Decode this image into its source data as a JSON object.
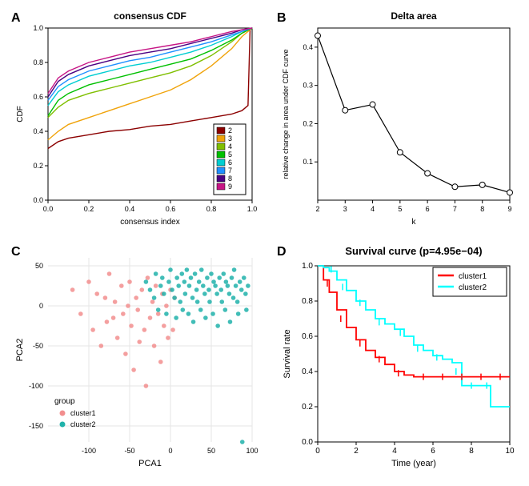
{
  "panelA": {
    "label": "A",
    "title": "consensus CDF",
    "xlabel": "consensus index",
    "ylabel": "CDF",
    "xlim": [
      0,
      1
    ],
    "ylim": [
      0,
      1
    ],
    "xticks": [
      0.0,
      0.2,
      0.4,
      0.6,
      0.8,
      1.0
    ],
    "yticks": [
      0.0,
      0.2,
      0.4,
      0.6,
      0.8,
      1.0
    ],
    "legend_items": [
      "2",
      "3",
      "4",
      "5",
      "6",
      "7",
      "8",
      "9"
    ],
    "legend_colors": [
      "#8B0000",
      "#F0A30A",
      "#7FBF00",
      "#00C000",
      "#00CED1",
      "#1E90FF",
      "#4B0082",
      "#C71585"
    ],
    "series": [
      {
        "color": "#8B0000",
        "pts": [
          [
            0,
            0.3
          ],
          [
            0.05,
            0.34
          ],
          [
            0.1,
            0.36
          ],
          [
            0.2,
            0.38
          ],
          [
            0.3,
            0.4
          ],
          [
            0.4,
            0.41
          ],
          [
            0.5,
            0.43
          ],
          [
            0.6,
            0.44
          ],
          [
            0.7,
            0.46
          ],
          [
            0.8,
            0.48
          ],
          [
            0.9,
            0.5
          ],
          [
            0.95,
            0.52
          ],
          [
            0.98,
            0.55
          ],
          [
            0.99,
            0.99
          ],
          [
            1,
            1
          ]
        ]
      },
      {
        "color": "#F0A30A",
        "pts": [
          [
            0,
            0.35
          ],
          [
            0.05,
            0.4
          ],
          [
            0.1,
            0.44
          ],
          [
            0.2,
            0.48
          ],
          [
            0.3,
            0.52
          ],
          [
            0.4,
            0.56
          ],
          [
            0.5,
            0.6
          ],
          [
            0.6,
            0.64
          ],
          [
            0.7,
            0.7
          ],
          [
            0.8,
            0.78
          ],
          [
            0.9,
            0.88
          ],
          [
            0.95,
            0.95
          ],
          [
            1,
            1
          ]
        ]
      },
      {
        "color": "#7FBF00",
        "pts": [
          [
            0,
            0.48
          ],
          [
            0.05,
            0.54
          ],
          [
            0.1,
            0.58
          ],
          [
            0.2,
            0.62
          ],
          [
            0.3,
            0.65
          ],
          [
            0.4,
            0.68
          ],
          [
            0.5,
            0.71
          ],
          [
            0.6,
            0.74
          ],
          [
            0.7,
            0.78
          ],
          [
            0.8,
            0.84
          ],
          [
            0.9,
            0.92
          ],
          [
            0.95,
            0.97
          ],
          [
            1,
            1
          ]
        ]
      },
      {
        "color": "#00C000",
        "pts": [
          [
            0,
            0.49
          ],
          [
            0.05,
            0.58
          ],
          [
            0.1,
            0.62
          ],
          [
            0.2,
            0.67
          ],
          [
            0.3,
            0.7
          ],
          [
            0.4,
            0.73
          ],
          [
            0.5,
            0.76
          ],
          [
            0.6,
            0.79
          ],
          [
            0.7,
            0.82
          ],
          [
            0.8,
            0.87
          ],
          [
            0.9,
            0.93
          ],
          [
            0.95,
            0.97
          ],
          [
            1,
            1
          ]
        ]
      },
      {
        "color": "#00CED1",
        "pts": [
          [
            0,
            0.55
          ],
          [
            0.05,
            0.63
          ],
          [
            0.1,
            0.67
          ],
          [
            0.2,
            0.72
          ],
          [
            0.3,
            0.75
          ],
          [
            0.4,
            0.78
          ],
          [
            0.5,
            0.8
          ],
          [
            0.6,
            0.83
          ],
          [
            0.7,
            0.86
          ],
          [
            0.8,
            0.9
          ],
          [
            0.9,
            0.95
          ],
          [
            0.95,
            0.98
          ],
          [
            1,
            1
          ]
        ]
      },
      {
        "color": "#1E90FF",
        "pts": [
          [
            0,
            0.58
          ],
          [
            0.05,
            0.66
          ],
          [
            0.1,
            0.7
          ],
          [
            0.2,
            0.75
          ],
          [
            0.3,
            0.78
          ],
          [
            0.4,
            0.81
          ],
          [
            0.5,
            0.83
          ],
          [
            0.6,
            0.86
          ],
          [
            0.7,
            0.89
          ],
          [
            0.8,
            0.92
          ],
          [
            0.9,
            0.96
          ],
          [
            0.95,
            0.98
          ],
          [
            1,
            1
          ]
        ]
      },
      {
        "color": "#4B0082",
        "pts": [
          [
            0,
            0.6
          ],
          [
            0.05,
            0.69
          ],
          [
            0.1,
            0.73
          ],
          [
            0.2,
            0.78
          ],
          [
            0.3,
            0.81
          ],
          [
            0.4,
            0.84
          ],
          [
            0.5,
            0.86
          ],
          [
            0.6,
            0.88
          ],
          [
            0.7,
            0.91
          ],
          [
            0.8,
            0.94
          ],
          [
            0.9,
            0.97
          ],
          [
            0.95,
            0.99
          ],
          [
            1,
            1
          ]
        ]
      },
      {
        "color": "#C71585",
        "pts": [
          [
            0,
            0.62
          ],
          [
            0.05,
            0.71
          ],
          [
            0.1,
            0.75
          ],
          [
            0.2,
            0.8
          ],
          [
            0.3,
            0.83
          ],
          [
            0.4,
            0.86
          ],
          [
            0.5,
            0.88
          ],
          [
            0.6,
            0.9
          ],
          [
            0.7,
            0.92
          ],
          [
            0.8,
            0.95
          ],
          [
            0.9,
            0.98
          ],
          [
            0.95,
            0.99
          ],
          [
            1,
            1
          ]
        ]
      }
    ]
  },
  "panelB": {
    "label": "B",
    "title": "Delta area",
    "xlabel": "k",
    "ylabel": "relative change in area under CDF curve",
    "xlim": [
      2,
      9
    ],
    "ylim": [
      0,
      0.45
    ],
    "xticks": [
      2,
      3,
      4,
      5,
      6,
      7,
      8,
      9
    ],
    "yticks": [
      0.1,
      0.2,
      0.3,
      0.4
    ],
    "points": [
      [
        2,
        0.43
      ],
      [
        3,
        0.235
      ],
      [
        4,
        0.25
      ],
      [
        5,
        0.125
      ],
      [
        6,
        0.07
      ],
      [
        7,
        0.035
      ],
      [
        8,
        0.04
      ],
      [
        9,
        0.02
      ]
    ],
    "line_color": "#000000",
    "marker_fill": "#ffffff",
    "marker_stroke": "#000000"
  },
  "panelC": {
    "label": "C",
    "xlabel": "PCA1",
    "ylabel": "PCA2",
    "xlim": [
      -150,
      100
    ],
    "ylim": [
      -170,
      60
    ],
    "xticks": [
      -100,
      -50,
      0,
      50,
      100
    ],
    "yticks": [
      -150,
      -100,
      -50,
      0,
      50
    ],
    "legend_title": "group",
    "legend_items": [
      "cluster1",
      "cluster2"
    ],
    "legend_colors": [
      "#F28E8E",
      "#20B2AA"
    ],
    "grid_color": "#e5e5e5",
    "cluster1_color": "#F28E8E",
    "cluster2_color": "#20B2AA",
    "cluster1": [
      [
        -120,
        20
      ],
      [
        -110,
        -10
      ],
      [
        -100,
        30
      ],
      [
        -95,
        -30
      ],
      [
        -90,
        15
      ],
      [
        -85,
        -50
      ],
      [
        -80,
        10
      ],
      [
        -78,
        -20
      ],
      [
        -75,
        40
      ],
      [
        -70,
        -15
      ],
      [
        -68,
        5
      ],
      [
        -65,
        -40
      ],
      [
        -60,
        25
      ],
      [
        -58,
        -10
      ],
      [
        -55,
        -60
      ],
      [
        -52,
        0
      ],
      [
        -50,
        30
      ],
      [
        -48,
        -25
      ],
      [
        -45,
        -80
      ],
      [
        -42,
        10
      ],
      [
        -40,
        -5
      ],
      [
        -38,
        -45
      ],
      [
        -35,
        20
      ],
      [
        -32,
        -30
      ],
      [
        -30,
        -100
      ],
      [
        -28,
        35
      ],
      [
        -25,
        -15
      ],
      [
        -22,
        5
      ],
      [
        -20,
        -50
      ],
      [
        -18,
        25
      ],
      [
        -15,
        -10
      ],
      [
        -12,
        -70
      ],
      [
        -10,
        15
      ],
      [
        -8,
        -25
      ],
      [
        -5,
        0
      ],
      [
        -3,
        -40
      ],
      [
        0,
        20
      ],
      [
        3,
        -30
      ],
      [
        5,
        10
      ]
    ],
    "cluster2": [
      [
        -30,
        30
      ],
      [
        -25,
        20
      ],
      [
        -20,
        10
      ],
      [
        -18,
        40
      ],
      [
        -15,
        -5
      ],
      [
        -12,
        25
      ],
      [
        -10,
        35
      ],
      [
        -8,
        15
      ],
      [
        -5,
        -10
      ],
      [
        -2,
        30
      ],
      [
        0,
        45
      ],
      [
        2,
        20
      ],
      [
        5,
        10
      ],
      [
        7,
        -15
      ],
      [
        8,
        35
      ],
      [
        10,
        25
      ],
      [
        12,
        5
      ],
      [
        14,
        40
      ],
      [
        15,
        -5
      ],
      [
        17,
        30
      ],
      [
        18,
        15
      ],
      [
        20,
        45
      ],
      [
        22,
        -10
      ],
      [
        23,
        25
      ],
      [
        25,
        35
      ],
      [
        27,
        10
      ],
      [
        28,
        -20
      ],
      [
        30,
        40
      ],
      [
        32,
        20
      ],
      [
        33,
        5
      ],
      [
        35,
        30
      ],
      [
        37,
        -5
      ],
      [
        38,
        45
      ],
      [
        40,
        25
      ],
      [
        42,
        15
      ],
      [
        43,
        -15
      ],
      [
        45,
        35
      ],
      [
        47,
        20
      ],
      [
        48,
        5
      ],
      [
        50,
        40
      ],
      [
        52,
        -10
      ],
      [
        53,
        30
      ],
      [
        55,
        25
      ],
      [
        57,
        15
      ],
      [
        58,
        -25
      ],
      [
        60,
        35
      ],
      [
        62,
        20
      ],
      [
        63,
        5
      ],
      [
        65,
        40
      ],
      [
        67,
        -5
      ],
      [
        68,
        30
      ],
      [
        70,
        25
      ],
      [
        72,
        15
      ],
      [
        73,
        -20
      ],
      [
        75,
        35
      ],
      [
        77,
        10
      ],
      [
        78,
        45
      ],
      [
        80,
        25
      ],
      [
        82,
        5
      ],
      [
        83,
        -10
      ],
      [
        85,
        30
      ],
      [
        87,
        20
      ],
      [
        88,
        -170
      ],
      [
        90,
        35
      ],
      [
        92,
        15
      ],
      [
        93,
        -5
      ],
      [
        95,
        25
      ]
    ]
  },
  "panelD": {
    "label": "D",
    "title": "Survival curve (p=4.95e−04)",
    "xlabel": "Time (year)",
    "ylabel": "Survival rate",
    "xlim": [
      0,
      10
    ],
    "ylim": [
      0,
      1
    ],
    "xticks": [
      0,
      2,
      4,
      6,
      8,
      10
    ],
    "yticks": [
      0.0,
      0.2,
      0.4,
      0.6,
      0.8,
      1.0
    ],
    "legend_items": [
      "cluster1",
      "cluster2"
    ],
    "legend_colors": [
      "#FF0000",
      "#00FFFF"
    ],
    "curves": [
      {
        "color": "#FF0000",
        "pts": [
          [
            0,
            1.0
          ],
          [
            0.3,
            0.92
          ],
          [
            0.6,
            0.85
          ],
          [
            1.0,
            0.75
          ],
          [
            1.5,
            0.65
          ],
          [
            2.0,
            0.58
          ],
          [
            2.5,
            0.52
          ],
          [
            3.0,
            0.48
          ],
          [
            3.5,
            0.44
          ],
          [
            4.0,
            0.4
          ],
          [
            4.5,
            0.38
          ],
          [
            5.0,
            0.37
          ],
          [
            6.0,
            0.37
          ],
          [
            7.0,
            0.37
          ],
          [
            8.0,
            0.37
          ],
          [
            9.0,
            0.37
          ],
          [
            10.0,
            0.37
          ]
        ]
      },
      {
        "color": "#00FFFF",
        "pts": [
          [
            0,
            1.0
          ],
          [
            0.3,
            0.99
          ],
          [
            0.6,
            0.97
          ],
          [
            1.0,
            0.92
          ],
          [
            1.5,
            0.86
          ],
          [
            2.0,
            0.8
          ],
          [
            2.5,
            0.75
          ],
          [
            3.0,
            0.7
          ],
          [
            3.5,
            0.67
          ],
          [
            4.0,
            0.64
          ],
          [
            4.5,
            0.6
          ],
          [
            5.0,
            0.55
          ],
          [
            5.5,
            0.52
          ],
          [
            6.0,
            0.49
          ],
          [
            6.5,
            0.47
          ],
          [
            7.0,
            0.45
          ],
          [
            7.5,
            0.32
          ],
          [
            8.0,
            0.32
          ],
          [
            8.5,
            0.32
          ],
          [
            9.0,
            0.2
          ],
          [
            9.5,
            0.2
          ],
          [
            10.0,
            0.2
          ]
        ]
      }
    ],
    "ticks1": [
      [
        0.5,
        0.9
      ],
      [
        1.2,
        0.7
      ],
      [
        2.2,
        0.56
      ],
      [
        3.2,
        0.47
      ],
      [
        4.2,
        0.39
      ],
      [
        5.5,
        0.37
      ],
      [
        6.5,
        0.37
      ],
      [
        7.5,
        0.37
      ],
      [
        8.5,
        0.37
      ],
      [
        9.5,
        0.37
      ]
    ],
    "ticks2": [
      [
        0.7,
        0.98
      ],
      [
        1.3,
        0.88
      ],
      [
        2.2,
        0.79
      ],
      [
        3.2,
        0.68
      ],
      [
        4.3,
        0.62
      ],
      [
        5.2,
        0.53
      ],
      [
        6.2,
        0.48
      ],
      [
        7.2,
        0.4
      ],
      [
        8.0,
        0.32
      ],
      [
        8.8,
        0.32
      ]
    ]
  }
}
